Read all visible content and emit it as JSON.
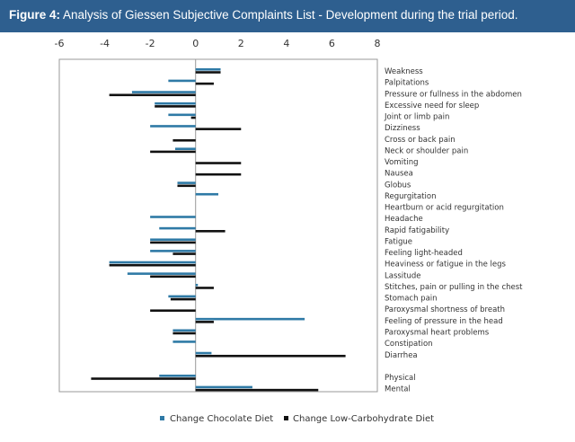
{
  "figure": {
    "label": "Figure 4:",
    "title": "Analysis of Giessen Subjective Complaints List - Development during the trial period."
  },
  "colors": {
    "header_bg": "#2e5f8f",
    "chocolate": "#2f7aa6",
    "low_carb": "#111111",
    "axis": "#999999"
  },
  "chart_data": {
    "type": "bar",
    "orientation": "horizontal",
    "title": "Analysis of Giessen Subjective Complaints List - Development during the trial period.",
    "xlim": [
      -6,
      8
    ],
    "xticks": [
      -6,
      -4,
      -2,
      0,
      2,
      4,
      6,
      8
    ],
    "grid": false,
    "legend_position": "bottom",
    "categories": [
      "Weakness",
      "Palpitations",
      "Pressure or fullness in the abdomen",
      "Excessive need for sleep",
      "Joint or limb pain",
      "Dizziness",
      "Cross or back pain",
      "Neck or shoulder pain",
      "Vomiting",
      "Nausea",
      "Globus",
      "Regurgitation",
      "Heartburn or acid regurgitation",
      "Headache",
      "Rapid fatigability",
      "Fatigue",
      "Feeling light-headed",
      "Heaviness or fatigue in the legs",
      "Lassitude",
      "Stitches, pain or pulling in the chest",
      "Stomach pain",
      "Paroxysmal shortness of breath",
      "Feeling of pressure in the head",
      "Paroxysmal heart problems",
      "Constipation",
      "Diarrhea",
      "",
      "Physical",
      "Mental"
    ],
    "series": [
      {
        "name": "Change Chocolate Diet",
        "values": [
          1.1,
          -1.2,
          -2.8,
          -1.8,
          -1.2,
          -2.0,
          0,
          -0.9,
          0,
          0,
          -0.8,
          1.0,
          0,
          -2.0,
          -1.6,
          -2.0,
          -2.0,
          -3.8,
          -3.0,
          0.1,
          -1.2,
          0,
          4.8,
          -1.0,
          -1.0,
          0.7,
          0,
          -1.6,
          2.5
        ]
      },
      {
        "name": "Change Low-Carbohydrate Diet",
        "values": [
          1.1,
          0.8,
          -3.8,
          -1.8,
          -0.2,
          2.0,
          -1.0,
          -2.0,
          2.0,
          2.0,
          -0.8,
          0,
          0,
          0,
          1.3,
          -2.0,
          -1.0,
          -3.8,
          -2.0,
          0.8,
          -1.1,
          -2.0,
          0.8,
          -1.0,
          0,
          6.6,
          0,
          -4.6,
          5.4
        ]
      }
    ]
  }
}
